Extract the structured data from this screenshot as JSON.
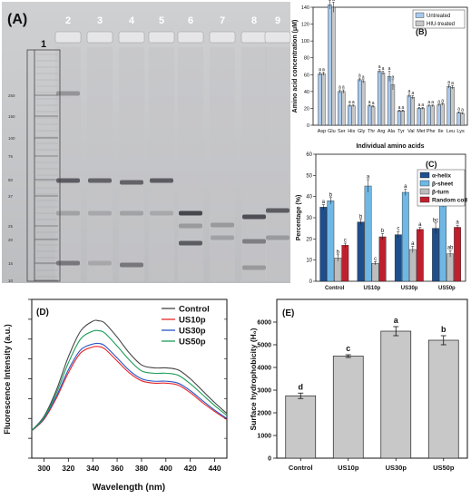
{
  "chart_data": [
    {
      "panel": "A",
      "type": "gel",
      "panel_label": "(A)",
      "lane_labels": [
        "1",
        "2",
        "3",
        "4",
        "5",
        "6",
        "7",
        "8",
        "9"
      ],
      "marker_labels": [
        "250",
        "150",
        "100",
        "75",
        "50",
        "37",
        "25",
        "20",
        "15",
        "10"
      ],
      "marker_kda": [
        250,
        150,
        100,
        75,
        50,
        37,
        25,
        20,
        15,
        10
      ]
    },
    {
      "panel": "B",
      "type": "bar",
      "panel_label": "(B)",
      "xlabel": "Individual amino acids",
      "ylabel": "Amino acid concentration (μM)",
      "ylim": [
        0,
        140
      ],
      "yticks": [
        0,
        20,
        40,
        60,
        80,
        100,
        120,
        140
      ],
      "categories": [
        "Asp",
        "Glu",
        "Ser",
        "His",
        "Gly",
        "Thr",
        "Arg",
        "Ala",
        "Tyr",
        "Val",
        "Met",
        "Phe",
        "Ile",
        "Leu",
        "Lys"
      ],
      "series": [
        {
          "name": "Untreated",
          "color": "#a9c9ec",
          "values": [
            61,
            143,
            40,
            23,
            54,
            23,
            64,
            58,
            17,
            35,
            20,
            23,
            24,
            46,
            15
          ],
          "errors": [
            2,
            5,
            2,
            1,
            2,
            1,
            2,
            6,
            1,
            2,
            1,
            1,
            1,
            2,
            1
          ],
          "labels": [
            "a",
            "a",
            "a",
            "a",
            "a",
            "a",
            "a",
            "a",
            "a",
            "a",
            "a",
            "a",
            "a",
            "a",
            "a"
          ]
        },
        {
          "name": "HIU-treated",
          "color": "#c8c8c8",
          "values": [
            61,
            140,
            40,
            23,
            52,
            22,
            62,
            48,
            17,
            33,
            20,
            23,
            25,
            45,
            14
          ],
          "errors": [
            2,
            6,
            2,
            1,
            2,
            1,
            2,
            6,
            1,
            2,
            1,
            1,
            1,
            2,
            1
          ],
          "labels": [
            "a",
            "a",
            "a",
            "a",
            "a",
            "a",
            "a",
            "a",
            "a",
            "a",
            "a",
            "a",
            "a",
            "a",
            "a"
          ]
        }
      ],
      "legend": "top-right"
    },
    {
      "panel": "C",
      "type": "bar",
      "panel_label": "(C)",
      "ylabel": "Percentage (%)",
      "ylim": [
        0,
        60
      ],
      "yticks": [
        0,
        10,
        20,
        30,
        40,
        50,
        60
      ],
      "categories": [
        "Control",
        "US10p",
        "US30p",
        "US50p"
      ],
      "series": [
        {
          "name": "α-helix",
          "color": "#1f4e8c",
          "values": [
            35,
            28,
            22,
            25
          ],
          "errors": [
            1.2,
            1.2,
            1.5,
            2.5
          ],
          "labels": [
            "a",
            "b",
            "c",
            "bc"
          ]
        },
        {
          "name": "β-sheet",
          "color": "#6fb7e5",
          "values": [
            38,
            45,
            42,
            37
          ],
          "errors": [
            1.5,
            3,
            1.5,
            2
          ],
          "labels": [
            "b",
            "a",
            "a",
            "c"
          ]
        },
        {
          "name": "β-turn",
          "color": "#bdbdbd",
          "values": [
            11,
            8.5,
            15,
            13
          ],
          "errors": [
            1.5,
            0.8,
            1.5,
            1.5
          ],
          "labels": [
            "b",
            "c",
            "a",
            "ab"
          ]
        },
        {
          "name": "Random coil",
          "color": "#c0202e",
          "values": [
            17,
            21,
            24.5,
            25.5
          ],
          "errors": [
            1,
            1.5,
            1,
            1
          ],
          "labels": [
            "c",
            "b",
            "a",
            "a"
          ]
        }
      ],
      "legend": "top-right"
    },
    {
      "panel": "D",
      "type": "line",
      "panel_label": "(D)",
      "xlabel": "Wavelength (nm)",
      "ylabel": "Fluorescence Intensity (a.u.)",
      "xlim": [
        290,
        450
      ],
      "ylim": [
        0,
        800
      ],
      "xticks": [
        300,
        320,
        340,
        360,
        380,
        400,
        420,
        440
      ],
      "yticks": [
        0,
        100,
        200,
        300,
        400,
        500,
        600,
        700,
        800
      ],
      "x": [
        290,
        300,
        310,
        320,
        330,
        340,
        345,
        350,
        360,
        370,
        380,
        390,
        400,
        410,
        420,
        430,
        440,
        450
      ],
      "series": [
        {
          "name": "Control",
          "color": "#444444",
          "values": [
            140,
            210,
            340,
            510,
            640,
            690,
            692,
            680,
            610,
            530,
            470,
            455,
            455,
            445,
            400,
            340,
            280,
            225
          ]
        },
        {
          "name": "US10p",
          "color": "#e8282b",
          "values": [
            138,
            195,
            300,
            430,
            530,
            560,
            562,
            550,
            490,
            430,
            390,
            378,
            378,
            368,
            330,
            280,
            235,
            195
          ]
        },
        {
          "name": "US30p",
          "color": "#2a56c6",
          "values": [
            139,
            200,
            310,
            445,
            545,
            575,
            578,
            566,
            505,
            442,
            400,
            388,
            388,
            378,
            340,
            290,
            242,
            200
          ]
        },
        {
          "name": "US50p",
          "color": "#1e9e5a",
          "values": [
            140,
            205,
            325,
            480,
            600,
            640,
            642,
            630,
            565,
            495,
            440,
            428,
            428,
            418,
            375,
            320,
            265,
            215
          ]
        }
      ],
      "legend": "top-right"
    },
    {
      "panel": "E",
      "type": "bar",
      "panel_label": "(E)",
      "ylabel": "Surface hydrophobicity (H₀)",
      "ylim": [
        0,
        7000
      ],
      "yticks": [
        0,
        1000,
        2000,
        3000,
        4000,
        5000,
        6000
      ],
      "categories": [
        "Control",
        "US10p",
        "US30p",
        "US50p"
      ],
      "values": [
        2750,
        4500,
        5600,
        5200
      ],
      "errors": [
        120,
        60,
        200,
        200
      ],
      "labels": [
        "d",
        "c",
        "a",
        "b"
      ],
      "color": "#c8c8c8"
    }
  ]
}
